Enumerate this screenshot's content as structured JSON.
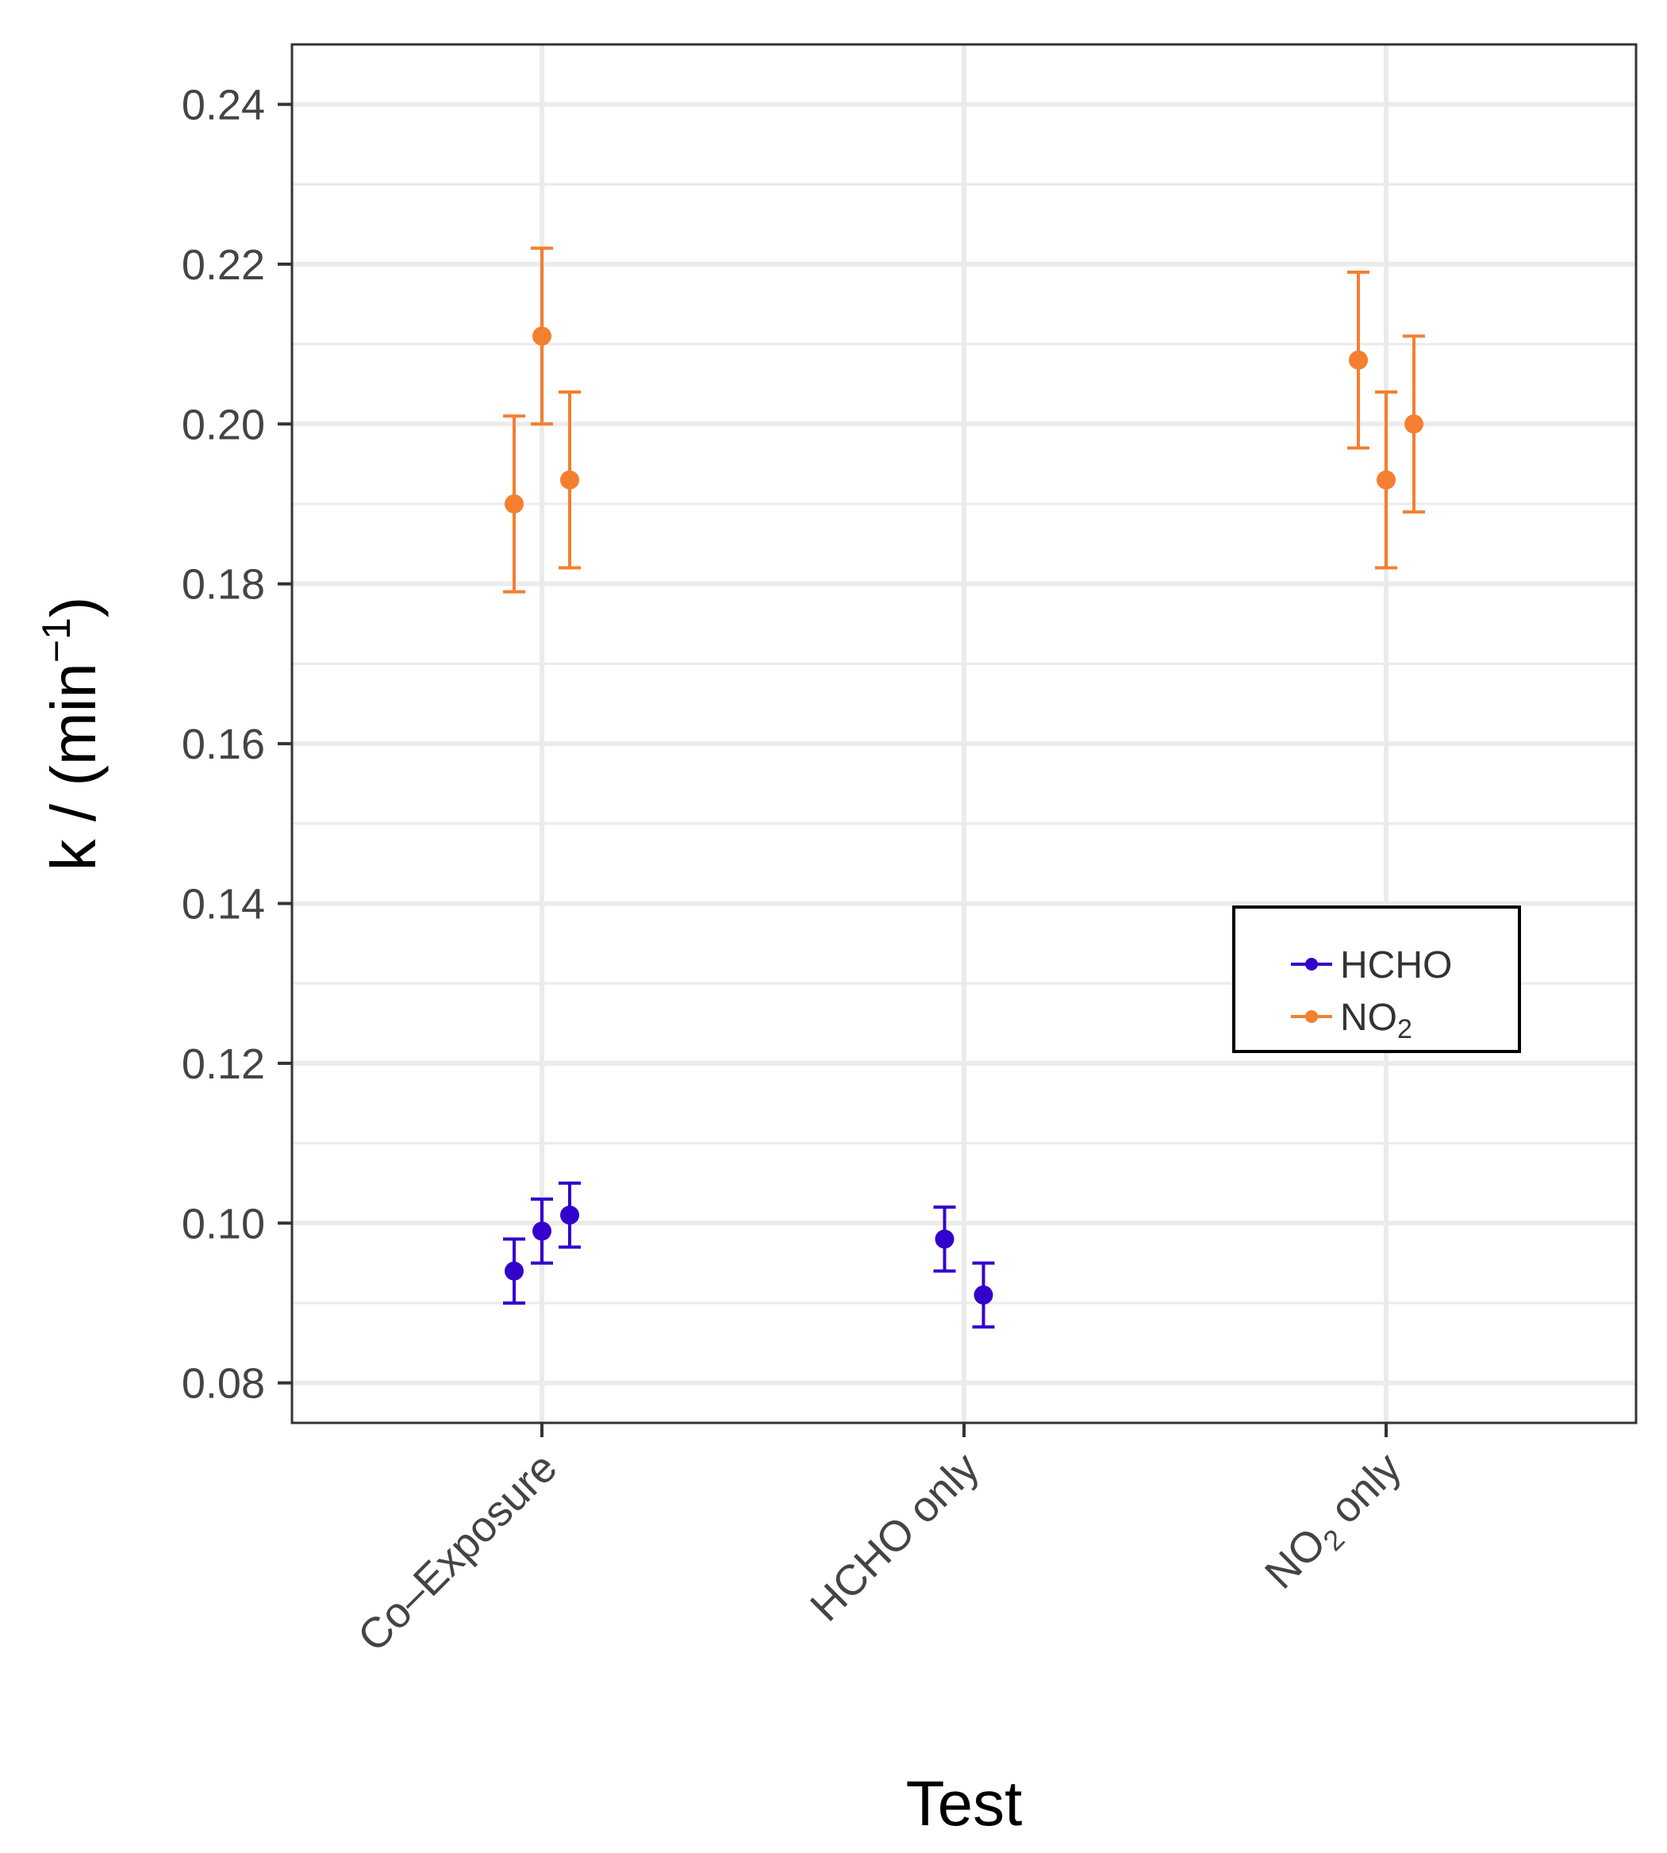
{
  "colors": {
    "HCHO": "#3300cc",
    "NO2": "#f47f2f",
    "grid": "#ebebeb",
    "frame": "#333333"
  },
  "chart_data": {
    "type": "scatter",
    "title": "",
    "xlabel": "Test",
    "ylabel": {
      "base": "k / (min",
      "superscript": "−1",
      "close": ")"
    },
    "ylim": [
      0.075,
      0.2475
    ],
    "yticks": [
      "0.08",
      "0.10",
      "0.12",
      "0.14",
      "0.16",
      "0.18",
      "0.20",
      "0.22",
      "0.24"
    ],
    "categories": [
      {
        "name": "Co–Exposure",
        "base": "Co–Exposure",
        "sub": "",
        "rest": ""
      },
      {
        "name": "HCHO only",
        "base": "HCHO only",
        "sub": "",
        "rest": ""
      },
      {
        "name": "NO2 only",
        "base": "NO",
        "sub": "2",
        "rest": " only"
      }
    ],
    "legend": {
      "position": "right-middle",
      "entries": [
        {
          "key": "HCHO",
          "base": "HCHO",
          "sub": ""
        },
        {
          "key": "NO2",
          "base": "NO",
          "sub": "2"
        }
      ]
    },
    "series": [
      {
        "name": "HCHO",
        "points": [
          {
            "category": 0,
            "offset": -1,
            "value": 0.094,
            "lower": 0.09,
            "upper": 0.098
          },
          {
            "category": 0,
            "offset": 0,
            "value": 0.099,
            "lower": 0.095,
            "upper": 0.103
          },
          {
            "category": 0,
            "offset": 1,
            "value": 0.101,
            "lower": 0.097,
            "upper": 0.105
          },
          {
            "category": 1,
            "offset": -0.7,
            "value": 0.098,
            "lower": 0.094,
            "upper": 0.102
          },
          {
            "category": 1,
            "offset": 0.7,
            "value": 0.091,
            "lower": 0.087,
            "upper": 0.095
          }
        ]
      },
      {
        "name": "NO2",
        "points": [
          {
            "category": 0,
            "offset": -1,
            "value": 0.19,
            "lower": 0.179,
            "upper": 0.201
          },
          {
            "category": 0,
            "offset": 0,
            "value": 0.211,
            "lower": 0.2,
            "upper": 0.222
          },
          {
            "category": 0,
            "offset": 1,
            "value": 0.193,
            "lower": 0.182,
            "upper": 0.204
          },
          {
            "category": 2,
            "offset": -1,
            "value": 0.208,
            "lower": 0.197,
            "upper": 0.219
          },
          {
            "category": 2,
            "offset": 0,
            "value": 0.193,
            "lower": 0.182,
            "upper": 0.204
          },
          {
            "category": 2,
            "offset": 1,
            "value": 0.2,
            "lower": 0.189,
            "upper": 0.211
          }
        ]
      }
    ]
  }
}
